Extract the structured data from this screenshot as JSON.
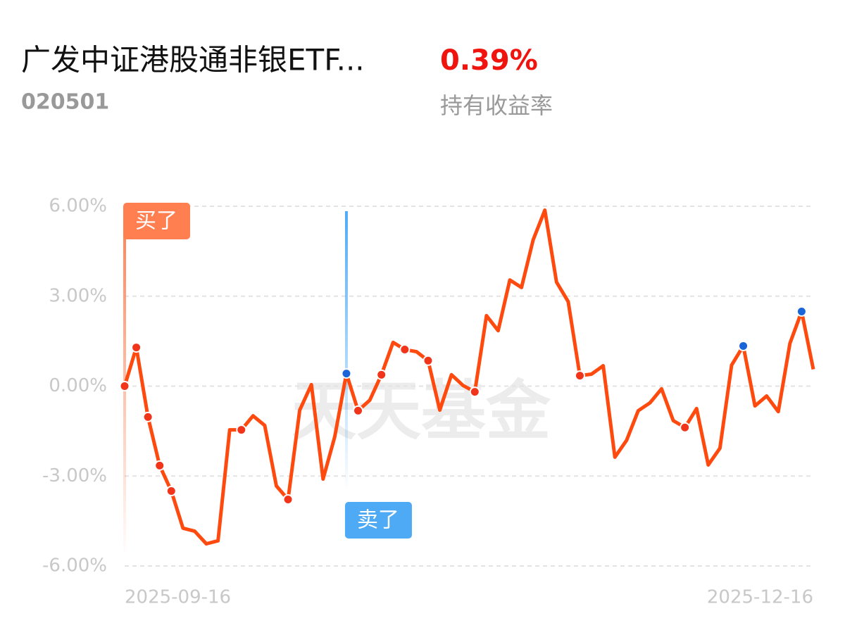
{
  "header": {
    "title": "广发中证港股通非银ETF...",
    "code": "020501",
    "return": "0.39%",
    "return_label": "持有收益率"
  },
  "chart_data": {
    "type": "line",
    "watermark": "天天基金",
    "x": [
      "2025-09-16",
      null,
      null,
      null,
      null,
      null,
      null,
      null,
      null,
      null,
      null,
      null,
      null,
      null,
      null,
      null,
      null,
      null,
      null,
      null,
      null,
      null,
      null,
      null,
      null,
      null,
      null,
      null,
      null,
      null,
      null,
      null,
      null,
      null,
      null,
      null,
      null,
      null,
      null,
      null,
      null,
      null,
      null,
      null,
      null,
      null,
      null,
      null,
      null,
      null,
      null,
      null,
      null,
      null,
      null,
      null,
      null,
      null,
      null,
      "2025-12-16"
    ],
    "series": [
      {
        "color": "#ff4a0f",
        "values": [
          0.0,
          1.29,
          -1.03,
          -2.65,
          -3.5,
          -4.74,
          -4.84,
          -5.26,
          -5.16,
          -1.46,
          -1.46,
          -0.99,
          -1.31,
          -3.33,
          -3.78,
          -0.8,
          0.05,
          -3.1,
          -1.69,
          0.42,
          -0.82,
          -0.47,
          0.38,
          1.46,
          1.22,
          1.15,
          0.85,
          -0.8,
          0.38,
          0.02,
          -0.19,
          2.35,
          1.85,
          3.54,
          3.29,
          4.88,
          5.87,
          3.47,
          2.82,
          0.35,
          0.4,
          0.68,
          -2.37,
          -1.81,
          -0.82,
          -0.56,
          -0.09,
          -1.15,
          -1.38,
          -0.75,
          -2.63,
          -2.07,
          0.7,
          1.34,
          -0.66,
          -0.33,
          -0.85,
          1.43,
          2.49,
          0.56
        ]
      }
    ],
    "ylim": [
      -6,
      6
    ],
    "yticks": [
      {
        "value": 6,
        "label": "6.00%"
      },
      {
        "value": 3,
        "label": "3.00%"
      },
      {
        "value": 0,
        "label": "0.00%"
      },
      {
        "value": -3,
        "label": "-3.00%"
      },
      {
        "value": -6,
        "label": "-6.00%"
      }
    ],
    "grid": true,
    "point_markers": [
      {
        "color": "#f0351a",
        "indices": [
          0,
          1,
          2,
          3,
          4,
          10,
          14,
          20,
          22,
          24,
          26,
          30,
          39,
          48
        ]
      },
      {
        "color": "#1a66d9",
        "indices": [
          19,
          53,
          58
        ]
      }
    ],
    "annotations": [
      {
        "text": "买了",
        "index": 0,
        "color": "#ff7f50",
        "position": "top"
      },
      {
        "text": "卖了",
        "index": 19,
        "color": "#4faaf5",
        "position": "bottom"
      }
    ]
  }
}
